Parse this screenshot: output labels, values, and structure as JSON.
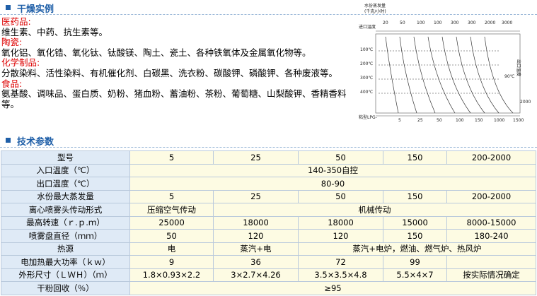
{
  "examples": {
    "title": "干燥实例",
    "groups": [
      {
        "label": "医药品:",
        "text": "维生素、中药、抗生素等。"
      },
      {
        "label": "陶瓷:",
        "text": "氧化铝、氧化锆、氧化钛、钛酸镁、陶土、瓷土、各种铁氧体及金属氧化物等。"
      },
      {
        "label": "化学制品:",
        "text": "分散染料、活性染料、有机催化剂、白碳黑、洗衣粉、碳酸钾、磷酸钾、各种废液等。"
      },
      {
        "label": "食品:",
        "text": "氨基酸、调味品、蛋白质、奶粉、猪血粉、蓄油粉、茶粉、葡萄糖、山梨酸钾、香精香料等。"
      }
    ]
  },
  "diagram": {
    "title": "水份蒸发量",
    "unit": "(千克/小时)",
    "inlet": "进口温度",
    "outlet": "出口温度",
    "outlet_temp": "90℃",
    "top_labels": [
      "20",
      "50",
      "100",
      "100",
      "300",
      "300",
      "2000",
      "3000"
    ],
    "left_labels": [
      "100℃",
      "200℃",
      "300℃",
      "400℃"
    ],
    "bottom_title": "粘型LPG-",
    "bottom_labels": [
      "5",
      "25",
      "50",
      "100",
      "150",
      "1000",
      "1500"
    ],
    "right_label": "2000"
  },
  "params": {
    "title": "技术参数",
    "rows": [
      [
        "型号",
        "5",
        "25",
        "50",
        "150",
        "200-2000"
      ],
      [
        "入口温度（℃）",
        "140-350自控"
      ],
      [
        "出口温度（℃）",
        "80-90"
      ],
      [
        "水份最大蒸发量",
        "5",
        "25",
        "50",
        "150",
        "200-2000"
      ],
      [
        "离心喷雾头传动形式",
        "压缩空气传动",
        "机械传动"
      ],
      [
        "最高转速（ｒ.ｐ.ｍ）",
        "25000",
        "18000",
        "18000",
        "15000",
        "8000-15000"
      ],
      [
        "喷雾盘直径（ｍｍ）",
        "50",
        "120",
        "120",
        "150",
        "180-240"
      ],
      [
        "热源",
        "电",
        "蒸汽+电",
        "蒸汽+电炉，燃油、燃气炉、热风炉"
      ],
      [
        "电加热最大功率（ｋｗ）",
        "9",
        "36",
        "72",
        "99",
        null
      ],
      [
        "外形尺寸（ＬＷＨ）（ｍ）",
        "1.8×0.93×2.2",
        "3×2.7×4.26",
        "3.5×3.5×4.8",
        "5.5×4×7",
        "按实际情况确定"
      ],
      [
        "干粉回收（％）",
        "≥95"
      ]
    ]
  }
}
